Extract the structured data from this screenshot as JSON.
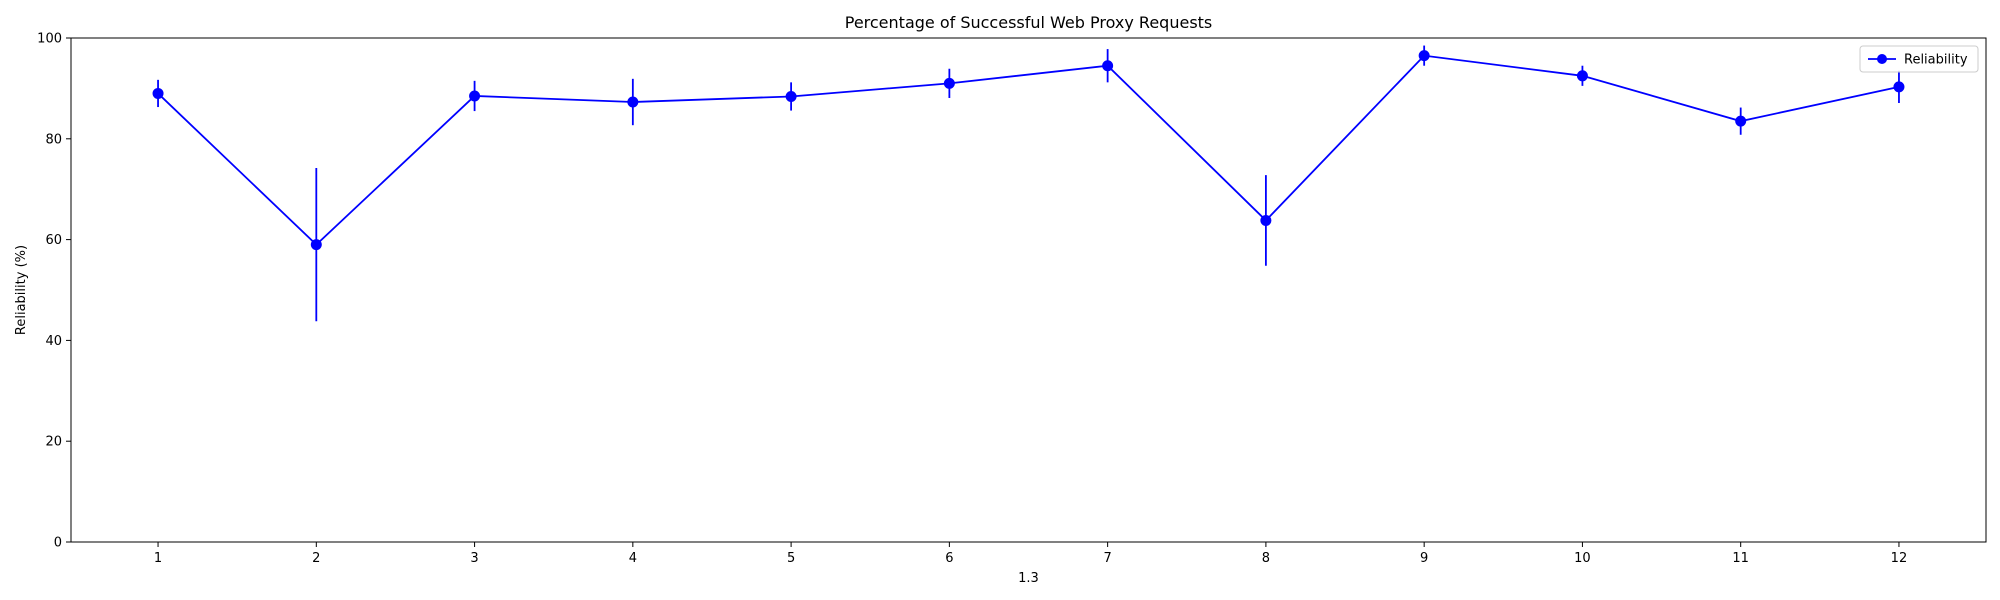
{
  "chart_data": {
    "type": "line",
    "title": "Percentage of Successful Web Proxy Requests",
    "xlabel": "1.3",
    "ylabel": "Reliability (%)",
    "x": [
      1,
      2,
      3,
      4,
      5,
      6,
      7,
      8,
      9,
      10,
      11,
      12
    ],
    "ylim": [
      0,
      100
    ],
    "yticks": [
      0,
      20,
      40,
      60,
      80,
      100
    ],
    "grid": false,
    "legend_position": "top-right",
    "series": [
      {
        "name": "Reliability",
        "color": "#0000ff",
        "marker": "circle",
        "values": [
          89.0,
          59.0,
          88.5,
          87.3,
          88.4,
          91.0,
          94.5,
          63.8,
          96.5,
          92.5,
          83.5,
          90.3
        ],
        "errors": [
          2.7,
          15.2,
          3.0,
          4.6,
          2.8,
          2.9,
          3.3,
          9.0,
          2.0,
          2.0,
          2.7,
          3.2
        ]
      }
    ]
  }
}
